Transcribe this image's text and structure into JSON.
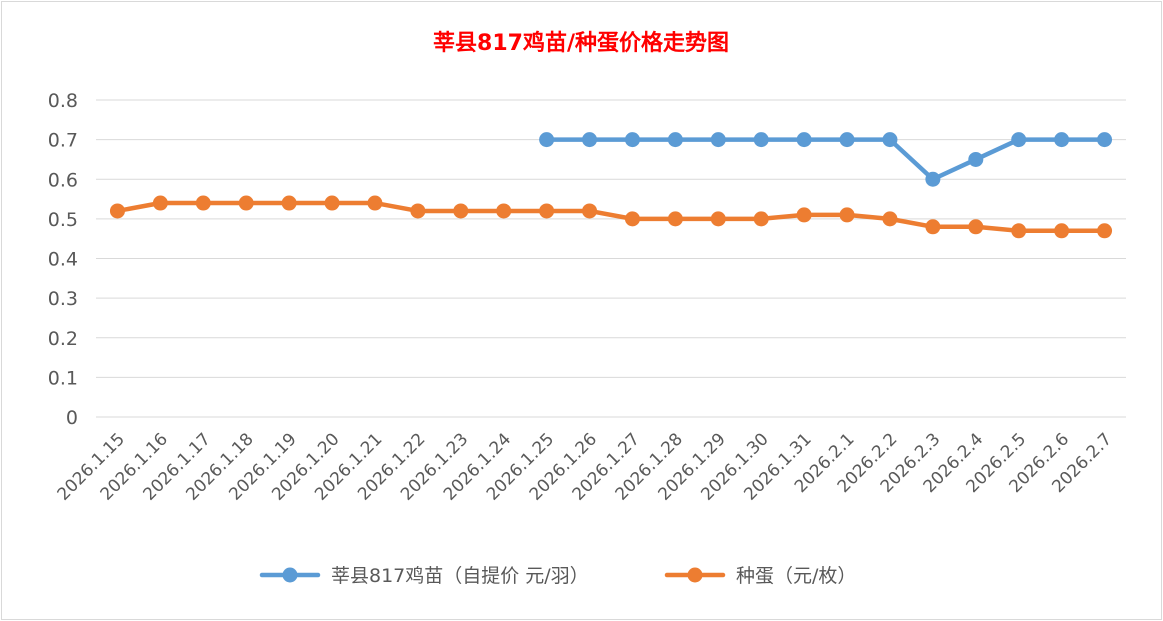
{
  "chart_data": {
    "type": "line",
    "title": "莘县817鸡苗/种蛋价格走势图",
    "categories": [
      "2026.1.15",
      "2026.1.16",
      "2026.1.17",
      "2026.1.18",
      "2026.1.19",
      "2026.1.20",
      "2026.1.21",
      "2026.1.22",
      "2026.1.23",
      "2026.1.24",
      "2026.1.25",
      "2026.1.26",
      "2026.1.27",
      "2026.1.28",
      "2026.1.29",
      "2026.1.30",
      "2026.1.31",
      "2026.2.1",
      "2026.2.2",
      "2026.2.3",
      "2026.2.4",
      "2026.2.5",
      "2026.2.6",
      "2026.2.7"
    ],
    "series": [
      {
        "name": "莘县817鸡苗（自提价 元/羽）",
        "color": "#5b9bd5",
        "values": [
          null,
          null,
          null,
          null,
          null,
          null,
          null,
          null,
          null,
          null,
          0.7,
          0.7,
          0.7,
          0.7,
          0.7,
          0.7,
          0.7,
          0.7,
          0.7,
          0.6,
          0.65,
          0.7,
          0.7,
          0.7
        ]
      },
      {
        "name": "种蛋（元/枚）",
        "color": "#ed7d31",
        "values": [
          0.52,
          0.54,
          0.54,
          0.54,
          0.54,
          0.54,
          0.54,
          0.52,
          0.52,
          0.52,
          0.52,
          0.52,
          0.5,
          0.5,
          0.5,
          0.5,
          0.51,
          0.51,
          0.5,
          0.48,
          0.48,
          0.47,
          0.47,
          0.47
        ]
      }
    ],
    "yticks": [
      "0",
      "0.1",
      "0.2",
      "0.3",
      "0.4",
      "0.5",
      "0.6",
      "0.7",
      "0.8"
    ],
    "ylim": [
      0,
      0.8
    ],
    "grid": true,
    "legend_position": "bottom",
    "gridline_color": "#d9d9d9"
  }
}
